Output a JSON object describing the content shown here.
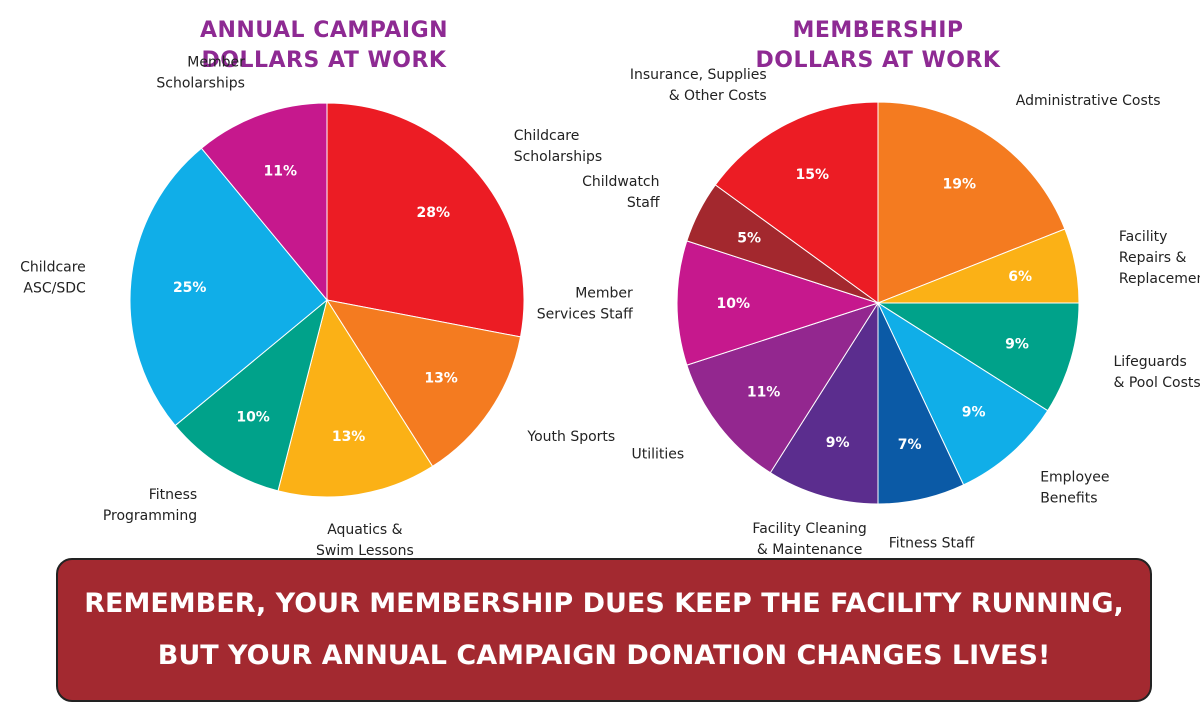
{
  "chart_data": [
    {
      "type": "pie",
      "title_lines": [
        "ANNUAL CAMPAIGN",
        "DOLLARS AT WORK"
      ],
      "slices": [
        {
          "label": [
            "Childcare",
            "Scholarships"
          ],
          "value": 28,
          "value_label": "28%",
          "color": "#ec1c24"
        },
        {
          "label": [
            "Youth Sports"
          ],
          "value": 13,
          "value_label": "13%",
          "color": "#f47b20"
        },
        {
          "label": [
            "Aquatics &",
            "Swim Lessons"
          ],
          "value": 13,
          "value_label": "13%",
          "color": "#fbb116"
        },
        {
          "label": [
            "Fitness",
            "Programming"
          ],
          "value": 10,
          "value_label": "10%",
          "color": "#00a28a"
        },
        {
          "label": [
            "Childcare",
            "ASC/SDC"
          ],
          "value": 25,
          "value_label": "25%",
          "color": "#10aee8"
        },
        {
          "label": [
            "Member",
            "Scholarships"
          ],
          "value": 11,
          "value_label": "11%",
          "color": "#c6188d"
        }
      ]
    },
    {
      "type": "pie",
      "title_lines": [
        "MEMBERSHIP",
        "DOLLARS AT WORK"
      ],
      "slices": [
        {
          "label": [
            "Administrative Costs"
          ],
          "value": 19,
          "value_label": "19%",
          "color": "#f47b20"
        },
        {
          "label": [
            "Facility",
            "Repairs &",
            "Replacement"
          ],
          "value": 6,
          "value_label": "6%",
          "color": "#fbb116"
        },
        {
          "label": [
            "Lifeguards",
            "& Pool Costs"
          ],
          "value": 9,
          "value_label": "9%",
          "color": "#00a28a"
        },
        {
          "label": [
            "Employee",
            "Benefits"
          ],
          "value": 9,
          "value_label": "9%",
          "color": "#10aee8"
        },
        {
          "label": [
            "Fitness Staff"
          ],
          "value": 7,
          "value_label": "7%",
          "color": "#0b5aa6"
        },
        {
          "label": [
            "Facility Cleaning",
            "& Maintenance"
          ],
          "value": 9,
          "value_label": "9%",
          "color": "#5b2d8e"
        },
        {
          "label": [
            "Utilities"
          ],
          "value": 11,
          "value_label": "11%",
          "color": "#93278f"
        },
        {
          "label": [
            "Member",
            "Services Staff"
          ],
          "value": 10,
          "value_label": "10%",
          "color": "#c6188d"
        },
        {
          "label": [
            "Childwatch",
            "Staff"
          ],
          "value": 5,
          "value_label": "5%",
          "color": "#a3282e"
        },
        {
          "label": [
            "Insurance, Supplies",
            "& Other Costs"
          ],
          "value": 15,
          "value_label": "15%",
          "color": "#ec1c24"
        }
      ]
    }
  ],
  "banner": {
    "line1": "REMEMBER, YOUR MEMBERSHIP DUES KEEP THE FACILITY RUNNING,",
    "line2": "BUT YOUR ANNUAL CAMPAIGN DONATION CHANGES LIVES!"
  },
  "colors": {
    "title": "#8e2a93",
    "banner_bg": "#a32930",
    "banner_text": "#ffffff"
  }
}
